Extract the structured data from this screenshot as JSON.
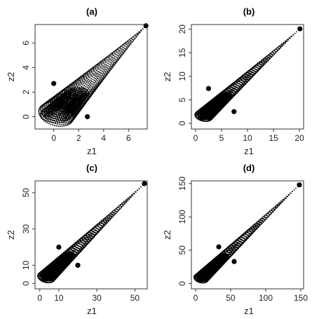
{
  "chart_data": [
    {
      "type": "scatter",
      "title": "(a)",
      "xlabel": "z1",
      "ylabel": "z2",
      "xlim": [
        -1.5,
        7.5
      ],
      "ylim": [
        -1.0,
        7.5
      ],
      "xticks": [
        0,
        2,
        4,
        6
      ],
      "yticks": [
        0,
        2,
        4,
        6
      ],
      "cloud": {
        "base": [
          0.2,
          0.2
        ],
        "scale": 1.25,
        "rotation": -0.65,
        "tip": [
          7.4,
          7.4
        ]
      },
      "highlight_points": [
        [
          0.0,
          2.7
        ],
        [
          2.7,
          0.0
        ],
        [
          7.4,
          7.4
        ]
      ]
    },
    {
      "type": "scatter",
      "title": "(b)",
      "xlabel": "z1",
      "ylabel": "z2",
      "xlim": [
        -0.8,
        20.8
      ],
      "ylim": [
        -1.2,
        21.0
      ],
      "xticks": [
        0,
        5,
        10,
        15,
        20
      ],
      "yticks": [
        0,
        5,
        10,
        15,
        20
      ],
      "cloud": {
        "base": [
          1.6,
          1.6
        ],
        "scale": 1.5,
        "rotation": -0.6,
        "tip": [
          20.1,
          20.1
        ]
      },
      "highlight_points": [
        [
          2.5,
          7.4
        ],
        [
          7.4,
          2.5
        ],
        [
          20.1,
          20.1
        ]
      ]
    },
    {
      "type": "scatter",
      "title": "(c)",
      "xlabel": "z1",
      "ylabel": "z2",
      "xlim": [
        -2.5,
        56.5
      ],
      "ylim": [
        -3.0,
        56.5
      ],
      "xticks": [
        0,
        10,
        30,
        50
      ],
      "yticks": [
        0,
        10,
        30,
        50
      ],
      "cloud": {
        "base": [
          3.5,
          3.5
        ],
        "scale": 4.0,
        "rotation": -0.6,
        "tip": [
          55.0,
          55.0
        ]
      },
      "highlight_points": [
        [
          10.0,
          20.0
        ],
        [
          20.0,
          10.0
        ],
        [
          55.0,
          55.0
        ]
      ]
    },
    {
      "type": "scatter",
      "title": "(d)",
      "xlabel": "z1",
      "ylabel": "z2",
      "xlim": [
        -6,
        154
      ],
      "ylim": [
        -8,
        154
      ],
      "xticks": [
        0,
        50,
        100,
        150
      ],
      "yticks": [
        0,
        50,
        100,
        150
      ],
      "cloud": {
        "base": [
          8.0,
          8.0
        ],
        "scale": 9.0,
        "rotation": -0.6,
        "tip": [
          148.0,
          148.0
        ]
      },
      "highlight_points": [
        [
          33.0,
          55.0
        ],
        [
          55.0,
          33.0
        ],
        [
          148.0,
          148.0
        ]
      ]
    }
  ],
  "colors": {
    "points": "#000000",
    "axes": "#333333",
    "background": "#ffffff"
  }
}
